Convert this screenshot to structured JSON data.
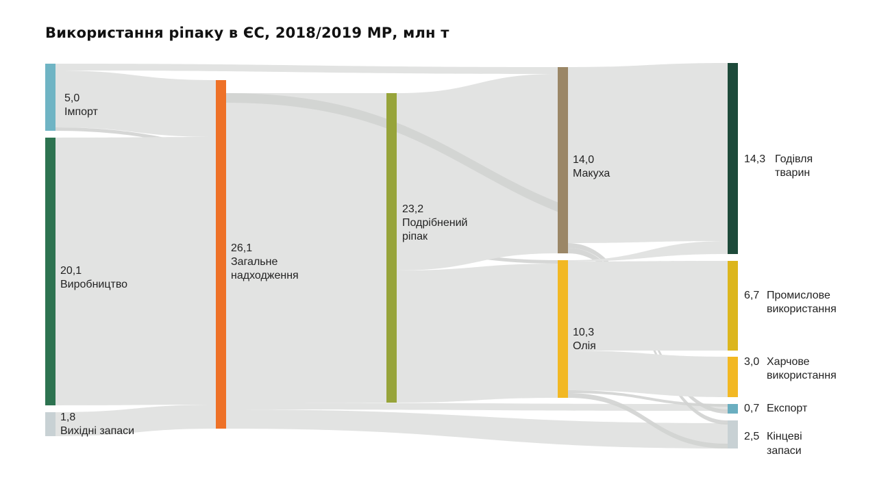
{
  "title": "Використання ріпаку в ЄС, 2018/2019 МР, млн т",
  "colors": {
    "flow": "#e2e3e2",
    "flow_dark": "#d2d3d2",
    "import": "#6fb4c4",
    "production": "#2d7350",
    "opening_stocks": "#c8d1d4",
    "total_supply": "#ee7127",
    "crushed": "#97a43a",
    "meal": "#9b8767",
    "oil": "#f2b823",
    "feed": "#1d4a3a",
    "industrial": "#dcb61d",
    "food": "#f2b823",
    "export": "#6aaec0",
    "ending_stocks": "#c8d1d4"
  },
  "nodes": [
    {
      "id": "import",
      "value": "5,0",
      "label": [
        "Імпорт"
      ]
    },
    {
      "id": "production",
      "value": "20,1",
      "label": [
        "Виробництво"
      ]
    },
    {
      "id": "opening_stocks",
      "value": "1,8",
      "label": [
        "Вихідні запаси"
      ]
    },
    {
      "id": "total_supply",
      "value": "26,1",
      "label": [
        "Загальне",
        "надходження"
      ]
    },
    {
      "id": "crushed",
      "value": "23,2",
      "label": [
        "Подрібнений",
        "ріпак"
      ]
    },
    {
      "id": "meal",
      "value": "14,0",
      "label": [
        "Макуха"
      ]
    },
    {
      "id": "oil",
      "value": "10,3",
      "label": [
        "Олія"
      ]
    },
    {
      "id": "feed",
      "value": "14,3",
      "label": [
        "Годівля",
        "тварин"
      ]
    },
    {
      "id": "industrial",
      "value": "6,7",
      "label": [
        "Промислове",
        "використання"
      ]
    },
    {
      "id": "food",
      "value": "3,0",
      "label": [
        "Харчове",
        "використання"
      ]
    },
    {
      "id": "export",
      "value": "0,7",
      "label": [
        "Експорт"
      ]
    },
    {
      "id": "ending_stocks",
      "value": "2,5",
      "label": [
        "Кінцеві",
        "запаси"
      ]
    }
  ]
}
